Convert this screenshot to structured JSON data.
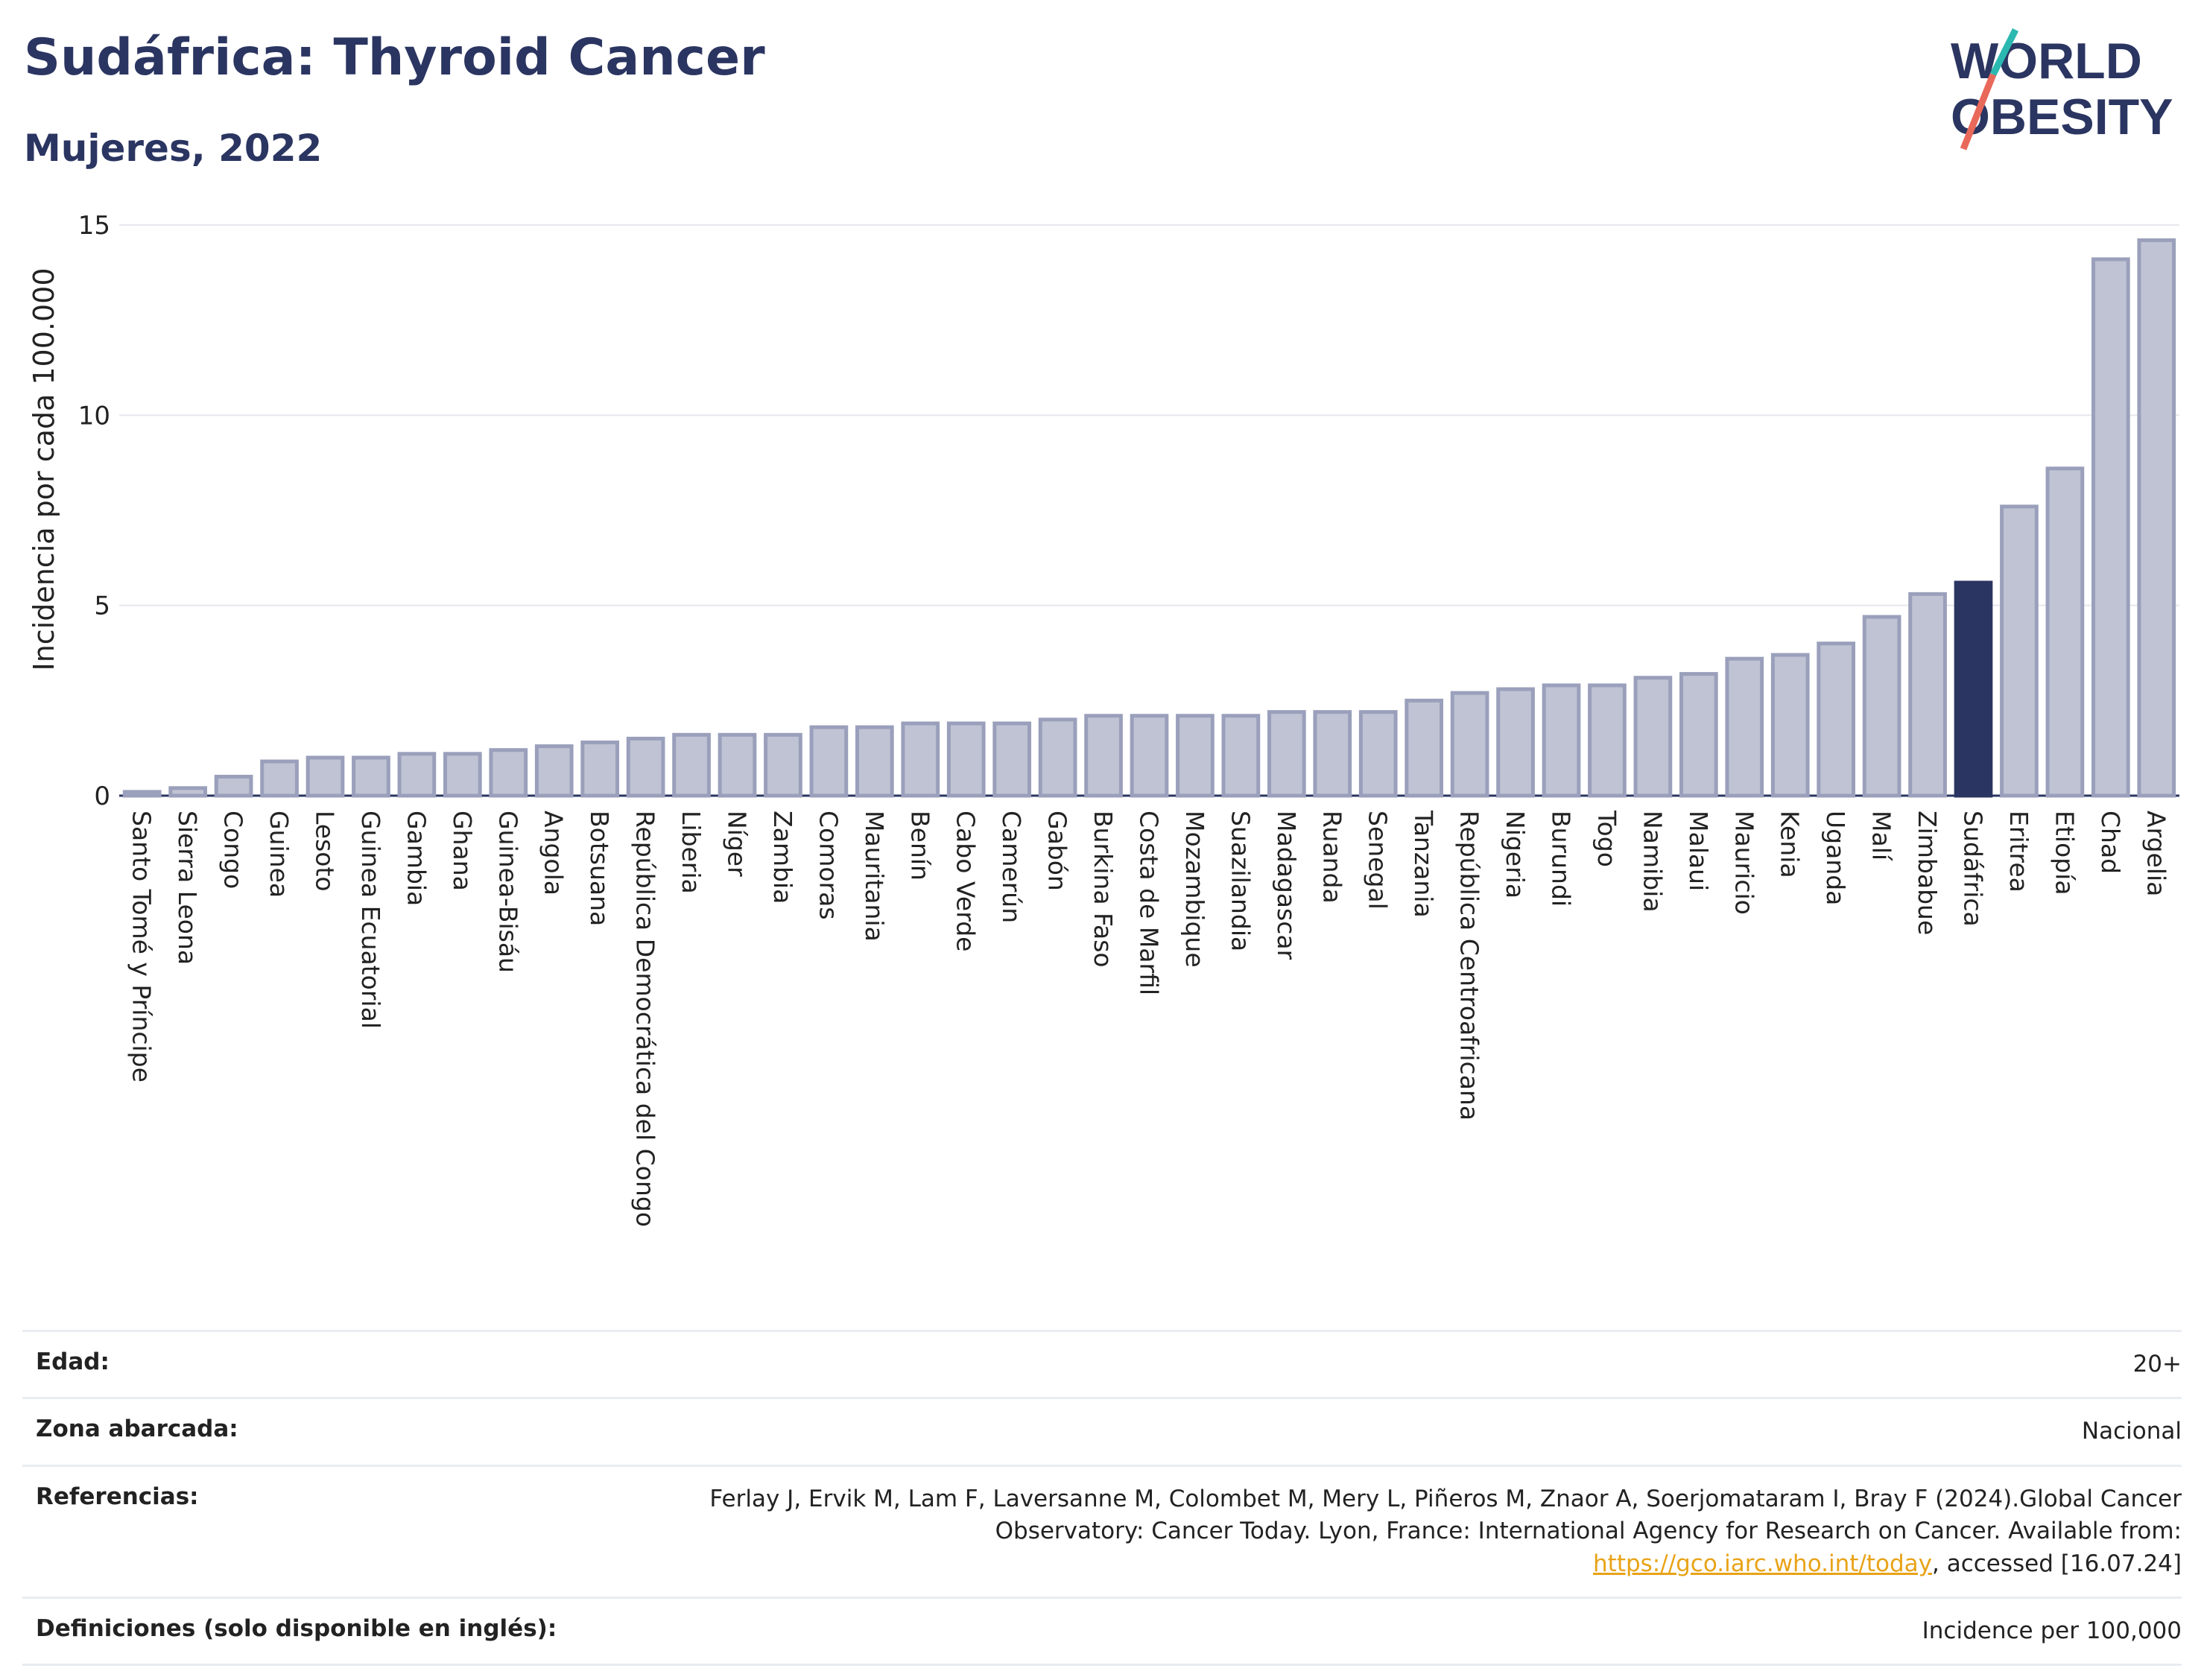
{
  "title": "Sudáfrica: Thyroid Cancer",
  "subtitle": "Mujeres, 2022",
  "logo": {
    "line1": "WORLD",
    "line2": "OBESITY",
    "colors": {
      "navy": "#2b3561",
      "teal": "#2bb8b0",
      "coral": "#e8685a"
    }
  },
  "colors": {
    "bar": "#bfc3d3",
    "bar_border": "#9aa0bb",
    "highlight": "#2b3561",
    "grid": "#e6e8ef",
    "axis_text": "#222222"
  },
  "chart_data": {
    "type": "bar",
    "title": "Sudáfrica: Thyroid Cancer",
    "subtitle": "Mujeres, 2022",
    "ylabel": "Incidencia por cada 100.000",
    "xlabel": "",
    "ylim": [
      0,
      15
    ],
    "yticks": [
      0,
      5,
      10,
      15
    ],
    "grid": true,
    "highlight": "Sudáfrica",
    "categories": [
      "Santo Tomé y Príncipe",
      "Sierra Leona",
      "Congo",
      "Guinea",
      "Lesoto",
      "Guinea Ecuatorial",
      "Gambia",
      "Ghana",
      "Guinea-Bisáu",
      "Angola",
      "Botsuana",
      "República Democrática del Congo",
      "Liberia",
      "Níger",
      "Zambia",
      "Comoras",
      "Mauritania",
      "Benín",
      "Cabo Verde",
      "Camerún",
      "Gabón",
      "Burkina Faso",
      "Costa de Marfil",
      "Mozambique",
      "Suazilandia",
      "Madagascar",
      "Ruanda",
      "Senegal",
      "Tanzania",
      "República Centroafricana",
      "Nigeria",
      "Burundi",
      "Togo",
      "Namibia",
      "Malaui",
      "Mauricio",
      "Kenia",
      "Uganda",
      "Malí",
      "Zimbabue",
      "Sudáfrica",
      "Eritrea",
      "Etiopía",
      "Chad",
      "Argelia"
    ],
    "values": [
      0.1,
      0.2,
      0.5,
      0.9,
      1.0,
      1.0,
      1.1,
      1.1,
      1.2,
      1.3,
      1.4,
      1.5,
      1.6,
      1.6,
      1.6,
      1.8,
      1.8,
      1.9,
      1.9,
      1.9,
      2.0,
      2.1,
      2.1,
      2.1,
      2.1,
      2.2,
      2.2,
      2.2,
      2.5,
      2.7,
      2.8,
      2.9,
      2.9,
      3.1,
      3.2,
      3.6,
      3.7,
      4.0,
      4.7,
      5.3,
      5.6,
      7.6,
      8.6,
      14.1,
      14.6
    ]
  },
  "meta": [
    {
      "label": "Edad:",
      "value": "20+"
    },
    {
      "label": "Zona abarcada:",
      "value": "Nacional"
    },
    {
      "label": "Referencias:",
      "value_before": "Ferlay J, Ervik M, Lam F, Laversanne M, Colombet M, Mery L, Piñeros M, Znaor A, Soerjomataram I, Bray F (2024).Global Cancer Observatory: Cancer Today. Lyon, France: International Agency for Research on Cancer. Available from: ",
      "link": "https://gco.iarc.who.int/today",
      "value_after": ", accessed [16.07.24]"
    },
    {
      "label": "Definiciones (solo disponible en inglés):",
      "value": "Incidence per 100,000"
    }
  ]
}
